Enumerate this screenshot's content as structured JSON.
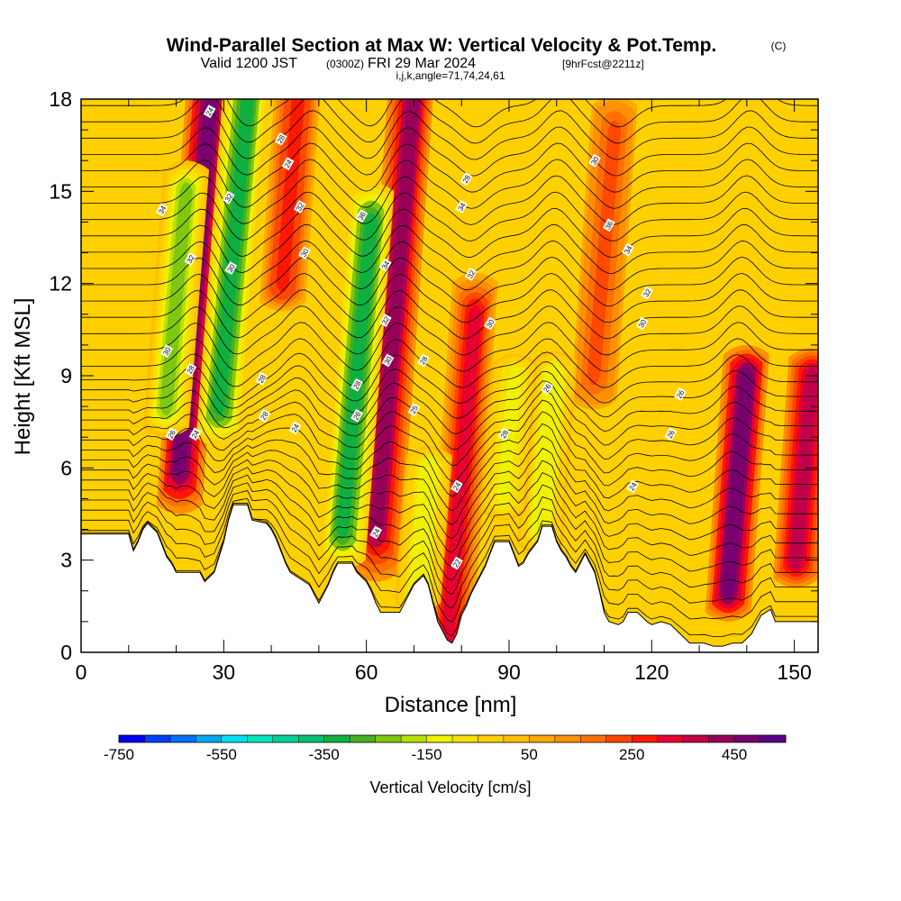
{
  "titles": {
    "main": "Wind-Parallel Section at Max W: Vertical Velocity & Pot.Temp.",
    "copyright": "(C)",
    "valid_prefix": "Valid 1200 JST",
    "valid_utc": "(0300Z)",
    "valid_date": "FRI 29 Mar 2024",
    "forecast": "[9hrFcst@2211z]",
    "indices": "i,j,k,angle=71,74,24,61"
  },
  "chart_data": {
    "type": "heatmap",
    "xlabel": "Distance [nm]",
    "ylabel": "Height [Kft MSL]",
    "xlim": [
      0,
      155
    ],
    "ylim": [
      0,
      18
    ],
    "x_ticks": [
      0,
      30,
      60,
      90,
      120,
      150
    ],
    "y_ticks": [
      0,
      3,
      6,
      9,
      12,
      15,
      18
    ],
    "grid": false,
    "shaded_field": {
      "name": "Vertical Velocity [cm/s]",
      "colorbar_min": -750,
      "colorbar_max": 500,
      "colorbar_step": 50,
      "colorbar_ticks": [
        -750,
        -550,
        -350,
        -150,
        50,
        250,
        450
      ],
      "colors": [
        "#0000f0",
        "#0040f8",
        "#0070f8",
        "#00a8f0",
        "#00e0f0",
        "#00e8c0",
        "#00d098",
        "#00c070",
        "#10b040",
        "#48b020",
        "#80c810",
        "#b8e000",
        "#f0f000",
        "#f8e000",
        "#ffd000",
        "#ffc000",
        "#ffa800",
        "#ff9000",
        "#ff7000",
        "#ff4800",
        "#ff1800",
        "#e80030",
        "#c00048",
        "#980058",
        "#780070",
        "#580088"
      ],
      "updraft_cores": [
        {
          "distance": 24,
          "height_low": 6,
          "height_high": 18,
          "peak": 480
        },
        {
          "distance": 66,
          "height_low": 4,
          "height_high": 18,
          "peak": 420
        },
        {
          "distance": 80,
          "height_low": 0.5,
          "height_high": 11,
          "peak": 300
        },
        {
          "distance": 44,
          "height_low": 12,
          "height_high": 18,
          "peak": 280
        },
        {
          "distance": 110,
          "height_low": 9,
          "height_high": 17,
          "peak": 200
        },
        {
          "distance": 138,
          "height_low": 2,
          "height_high": 9,
          "peak": 470
        },
        {
          "distance": 152,
          "height_low": 3,
          "height_high": 9,
          "peak": 350
        }
      ],
      "downdraft_cores": [
        {
          "distance": 32,
          "height_low": 8,
          "height_high": 18,
          "peak": -350
        },
        {
          "distance": 58,
          "height_low": 4,
          "height_high": 14,
          "peak": -350
        },
        {
          "distance": 20,
          "height_low": 8,
          "height_high": 15,
          "peak": -250
        },
        {
          "distance": 72,
          "height_low": 2,
          "height_high": 6,
          "peak": -150
        },
        {
          "distance": 98,
          "height_low": 4,
          "height_high": 9,
          "peak": -150
        },
        {
          "distance": 90,
          "height_low": 5,
          "height_high": 9,
          "peak": -120
        }
      ]
    },
    "contour_field": {
      "name": "Pot.Temp.",
      "contour_labels": [
        {
          "text": "24",
          "x": 27,
          "y": 17.6
        },
        {
          "text": "28",
          "x": 42,
          "y": 16.7
        },
        {
          "text": "24",
          "x": 43.5,
          "y": 15.9
        },
        {
          "text": "34",
          "x": 17,
          "y": 14.4
        },
        {
          "text": "32",
          "x": 31,
          "y": 14.8
        },
        {
          "text": "32",
          "x": 46,
          "y": 14.5
        },
        {
          "text": "36",
          "x": 59,
          "y": 14.2
        },
        {
          "text": "32",
          "x": 23,
          "y": 12.8
        },
        {
          "text": "30",
          "x": 31.5,
          "y": 12.5
        },
        {
          "text": "30",
          "x": 47,
          "y": 13
        },
        {
          "text": "34",
          "x": 64,
          "y": 12.6
        },
        {
          "text": "28",
          "x": 81,
          "y": 15.4
        },
        {
          "text": "34",
          "x": 80,
          "y": 14.5
        },
        {
          "text": "32",
          "x": 82,
          "y": 12.3
        },
        {
          "text": "30",
          "x": 86,
          "y": 10.7
        },
        {
          "text": "30",
          "x": 108,
          "y": 16
        },
        {
          "text": "36",
          "x": 111,
          "y": 13.9
        },
        {
          "text": "34",
          "x": 115,
          "y": 13.1
        },
        {
          "text": "32",
          "x": 119,
          "y": 11.7
        },
        {
          "text": "30",
          "x": 118,
          "y": 10.7
        },
        {
          "text": "32",
          "x": 64,
          "y": 10.8
        },
        {
          "text": "30",
          "x": 18,
          "y": 9.8
        },
        {
          "text": "28",
          "x": 23,
          "y": 9.2
        },
        {
          "text": "28",
          "x": 38,
          "y": 8.9
        },
        {
          "text": "30",
          "x": 64.5,
          "y": 9.5
        },
        {
          "text": "28",
          "x": 72,
          "y": 9.5
        },
        {
          "text": "28",
          "x": 58,
          "y": 8.7
        },
        {
          "text": "25",
          "x": 70,
          "y": 7.9
        },
        {
          "text": "26",
          "x": 98,
          "y": 8.6
        },
        {
          "text": "26",
          "x": 126,
          "y": 8.4
        },
        {
          "text": "28",
          "x": 38.5,
          "y": 7.7
        },
        {
          "text": "24",
          "x": 45,
          "y": 7.3
        },
        {
          "text": "26",
          "x": 58,
          "y": 7.7
        },
        {
          "text": "28",
          "x": 89,
          "y": 7.1
        },
        {
          "text": "26",
          "x": 124,
          "y": 7.1
        },
        {
          "text": "26",
          "x": 19,
          "y": 7.1
        },
        {
          "text": "24",
          "x": 24,
          "y": 7.1
        },
        {
          "text": "24",
          "x": 79,
          "y": 5.4
        },
        {
          "text": "24",
          "x": 116,
          "y": 5.4
        },
        {
          "text": "24",
          "x": 62,
          "y": 3.9
        },
        {
          "text": "22",
          "x": 79,
          "y": 2.9
        }
      ]
    },
    "terrain_top_kft": [
      [
        0,
        3.85
      ],
      [
        10,
        3.85
      ],
      [
        11,
        3.3
      ],
      [
        12,
        3.6
      ],
      [
        13,
        4.0
      ],
      [
        14,
        4.2
      ],
      [
        16,
        3.9
      ],
      [
        17,
        3.5
      ],
      [
        18,
        3.1
      ],
      [
        19,
        2.9
      ],
      [
        20,
        2.6
      ],
      [
        25,
        2.6
      ],
      [
        26,
        2.3
      ],
      [
        28,
        2.6
      ],
      [
        29,
        3.1
      ],
      [
        30,
        3.6
      ],
      [
        31,
        4.3
      ],
      [
        32,
        4.8
      ],
      [
        35,
        4.8
      ],
      [
        36,
        4.3
      ],
      [
        39,
        4.2
      ],
      [
        40,
        4.0
      ],
      [
        41,
        3.7
      ],
      [
        42,
        3.3
      ],
      [
        43,
        2.9
      ],
      [
        44,
        2.6
      ],
      [
        46,
        2.4
      ],
      [
        48,
        2.2
      ],
      [
        49,
        1.9
      ],
      [
        50,
        1.6
      ],
      [
        51,
        1.9
      ],
      [
        52,
        2.2
      ],
      [
        53,
        2.6
      ],
      [
        54,
        2.9
      ],
      [
        57,
        2.9
      ],
      [
        58,
        2.6
      ],
      [
        60,
        2.3
      ],
      [
        61,
        2.0
      ],
      [
        62,
        1.6
      ],
      [
        63,
        1.3
      ],
      [
        67,
        1.3
      ],
      [
        68,
        1.6
      ],
      [
        69,
        1.9
      ],
      [
        70,
        2.2
      ],
      [
        72,
        2.5
      ],
      [
        73,
        2.2
      ],
      [
        74,
        1.6
      ],
      [
        75,
        1.0
      ],
      [
        76,
        0.7
      ],
      [
        77,
        0.4
      ],
      [
        78,
        0.3
      ],
      [
        79,
        0.6
      ],
      [
        80,
        1.2
      ],
      [
        81,
        1.5
      ],
      [
        82,
        1.9
      ],
      [
        83,
        2.2
      ],
      [
        84,
        2.5
      ],
      [
        85,
        2.8
      ],
      [
        86,
        3.2
      ],
      [
        87,
        3.6
      ],
      [
        90,
        3.6
      ],
      [
        91,
        3.2
      ],
      [
        92,
        2.8
      ],
      [
        93,
        2.9
      ],
      [
        94,
        3.2
      ],
      [
        96,
        3.6
      ],
      [
        97,
        4.1
      ],
      [
        99,
        4.1
      ],
      [
        100,
        3.6
      ],
      [
        101,
        3.3
      ],
      [
        102,
        3.1
      ],
      [
        103,
        2.8
      ],
      [
        104,
        2.6
      ],
      [
        106,
        3.2
      ],
      [
        107,
        2.9
      ],
      [
        108,
        2.6
      ],
      [
        109,
        2.0
      ],
      [
        110,
        1.3
      ],
      [
        111,
        1.0
      ],
      [
        113,
        0.9
      ],
      [
        114,
        1.0
      ],
      [
        115,
        1.3
      ],
      [
        117,
        1.3
      ],
      [
        119,
        1.0
      ],
      [
        120,
        0.9
      ],
      [
        122,
        1.0
      ],
      [
        124,
        0.9
      ],
      [
        126,
        0.6
      ],
      [
        128,
        0.3
      ],
      [
        131,
        0.3
      ],
      [
        133,
        0.2
      ],
      [
        135,
        0.2
      ],
      [
        137,
        0.3
      ],
      [
        139,
        0.3
      ],
      [
        141,
        0.6
      ],
      [
        142,
        0.9
      ],
      [
        143,
        1.2
      ],
      [
        145,
        1.4
      ],
      [
        146,
        1.0
      ],
      [
        148,
        1.0
      ],
      [
        150,
        1.0
      ],
      [
        155,
        1.0
      ]
    ]
  }
}
